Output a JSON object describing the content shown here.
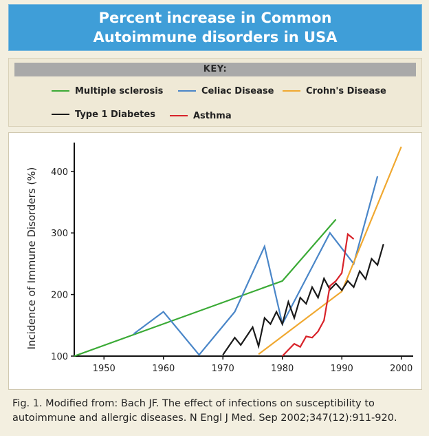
{
  "header": {
    "title": "Percent increase in Common Autoimmune disorders in USA"
  },
  "key": {
    "heading": "KEY:"
  },
  "caption": "Fig. 1. Modified from: Bach JF. The effect of infections on susceptibility to autoimmune and allergic diseases. N Engl J Med. Sep 2002;347(12):911-920.",
  "chart_data": {
    "type": "line",
    "title": "Percent increase in Common Autoimmune disorders in USA",
    "xlabel": "",
    "ylabel": "Incidence of Immune Disorders (%)",
    "xlim": [
      1945,
      2002
    ],
    "ylim": [
      100,
      440
    ],
    "xticks": [
      1950,
      1960,
      1970,
      1980,
      1990,
      2000
    ],
    "yticks": [
      100,
      200,
      300,
      400
    ],
    "grid": false,
    "legend_position": "top",
    "series": [
      {
        "name": "Multiple sclerosis",
        "color": "#3aaa35",
        "x": [
          1945,
          1980,
          1989
        ],
        "y": [
          100,
          222,
          322
        ]
      },
      {
        "name": "Celiac Disease",
        "color": "#4a86c8",
        "x": [
          1955,
          1960,
          1966,
          1972,
          1977,
          1980,
          1988,
          1992,
          1996
        ],
        "y": [
          136,
          172,
          102,
          172,
          278,
          152,
          300,
          250,
          392
        ]
      },
      {
        "name": "Crohn's Disease",
        "color": "#f0a830",
        "x": [
          1976,
          1990,
          2000
        ],
        "y": [
          103,
          205,
          440
        ]
      },
      {
        "name": "Type 1 Diabetes",
        "color": "#1a1a1a",
        "x": [
          1970,
          1972,
          1973,
          1975,
          1976,
          1977,
          1978,
          1979,
          1980,
          1981,
          1982,
          1983,
          1984,
          1985,
          1986,
          1987,
          1988,
          1989,
          1990,
          1991,
          1992,
          1993,
          1994,
          1995,
          1996,
          1997
        ],
        "y": [
          102,
          130,
          118,
          147,
          116,
          162,
          152,
          172,
          152,
          188,
          162,
          195,
          185,
          212,
          195,
          226,
          208,
          218,
          207,
          222,
          212,
          238,
          225,
          258,
          248,
          282
        ]
      },
      {
        "name": "Asthma",
        "color": "#d8232a",
        "x": [
          1980,
          1982,
          1983,
          1984,
          1985,
          1986,
          1987,
          1988,
          1989,
          1990,
          1991,
          1992
        ],
        "y": [
          100,
          120,
          115,
          132,
          130,
          140,
          158,
          214,
          222,
          235,
          298,
          290
        ]
      }
    ]
  }
}
